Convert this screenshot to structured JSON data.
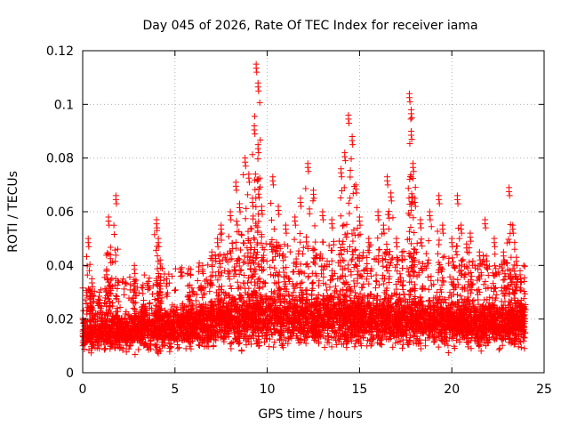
{
  "chart_data": {
    "type": "scatter",
    "title": "Day 045 of 2026, Rate Of TEC Index for receiver iama",
    "xlabel": "GPS time / hours",
    "ylabel": "ROTI / TECUs",
    "xlim": [
      0,
      25
    ],
    "ylim": [
      0,
      0.12
    ],
    "xticks": [
      "0",
      "5",
      "10",
      "15",
      "20",
      "25"
    ],
    "yticks": [
      "0",
      "0.02",
      "0.04",
      "0.06",
      "0.08",
      "0.1",
      "0.12"
    ],
    "grid": true,
    "marker": "+",
    "color": "#ff0000",
    "series": [
      {
        "name": "",
        "points": [
          [
            0.3,
            0.05
          ],
          [
            0.5,
            0.035
          ],
          [
            0.9,
            0.03
          ],
          [
            1.3,
            0.038
          ],
          [
            1.4,
            0.058
          ],
          [
            1.5,
            0.044
          ],
          [
            1.8,
            0.066
          ],
          [
            2.8,
            0.04
          ],
          [
            3.3,
            0.027
          ],
          [
            4.0,
            0.057
          ],
          [
            4.1,
            0.05
          ],
          [
            4.2,
            0.042
          ],
          [
            5.8,
            0.03
          ],
          [
            6.5,
            0.04
          ],
          [
            7.0,
            0.045
          ],
          [
            7.3,
            0.05
          ],
          [
            7.5,
            0.055
          ],
          [
            8.0,
            0.06
          ],
          [
            8.3,
            0.071
          ],
          [
            8.5,
            0.063
          ],
          [
            8.8,
            0.08
          ],
          [
            9.0,
            0.074
          ],
          [
            9.2,
            0.065
          ],
          [
            9.4,
            0.115
          ],
          [
            9.5,
            0.108
          ],
          [
            9.3,
            0.092
          ],
          [
            9.5,
            0.085
          ],
          [
            9.7,
            0.062
          ],
          [
            10.3,
            0.073
          ],
          [
            10.6,
            0.062
          ],
          [
            11.0,
            0.055
          ],
          [
            11.5,
            0.058
          ],
          [
            11.8,
            0.065
          ],
          [
            12.2,
            0.078
          ],
          [
            12.5,
            0.068
          ],
          [
            13.0,
            0.06
          ],
          [
            13.5,
            0.057
          ],
          [
            14.0,
            0.076
          ],
          [
            14.2,
            0.082
          ],
          [
            14.4,
            0.096
          ],
          [
            14.6,
            0.088
          ],
          [
            14.8,
            0.07
          ],
          [
            15.0,
            0.058
          ],
          [
            15.5,
            0.05
          ],
          [
            16.0,
            0.06
          ],
          [
            16.3,
            0.055
          ],
          [
            16.5,
            0.073
          ],
          [
            16.7,
            0.067
          ],
          [
            17.0,
            0.05
          ],
          [
            17.3,
            0.045
          ],
          [
            17.7,
            0.104
          ],
          [
            17.8,
            0.098
          ],
          [
            17.8,
            0.09
          ],
          [
            17.9,
            0.078
          ],
          [
            18.0,
            0.065
          ],
          [
            18.3,
            0.057
          ],
          [
            18.8,
            0.06
          ],
          [
            19.3,
            0.066
          ],
          [
            19.5,
            0.055
          ],
          [
            20.0,
            0.05
          ],
          [
            20.3,
            0.066
          ],
          [
            20.5,
            0.055
          ],
          [
            20.8,
            0.048
          ],
          [
            21.0,
            0.052
          ],
          [
            21.5,
            0.045
          ],
          [
            21.8,
            0.057
          ],
          [
            22.3,
            0.05
          ],
          [
            22.8,
            0.045
          ],
          [
            23.1,
            0.069
          ],
          [
            23.3,
            0.055
          ],
          [
            23.5,
            0.043
          ],
          [
            23.7,
            0.038
          ]
        ],
        "baseline": {
          "x_range": [
            0,
            24
          ],
          "band_profile": [
            [
              0,
              0.006,
              0.022
            ],
            [
              2,
              0.006,
              0.024
            ],
            [
              4,
              0.006,
              0.026
            ],
            [
              6,
              0.007,
              0.028
            ],
            [
              8,
              0.007,
              0.032
            ],
            [
              10,
              0.007,
              0.033
            ],
            [
              12,
              0.007,
              0.032
            ],
            [
              14,
              0.007,
              0.033
            ],
            [
              16,
              0.007,
              0.031
            ],
            [
              18,
              0.007,
              0.031
            ],
            [
              20,
              0.007,
              0.03
            ],
            [
              22,
              0.007,
              0.029
            ],
            [
              24,
              0.007,
              0.028
            ]
          ]
        }
      }
    ]
  }
}
